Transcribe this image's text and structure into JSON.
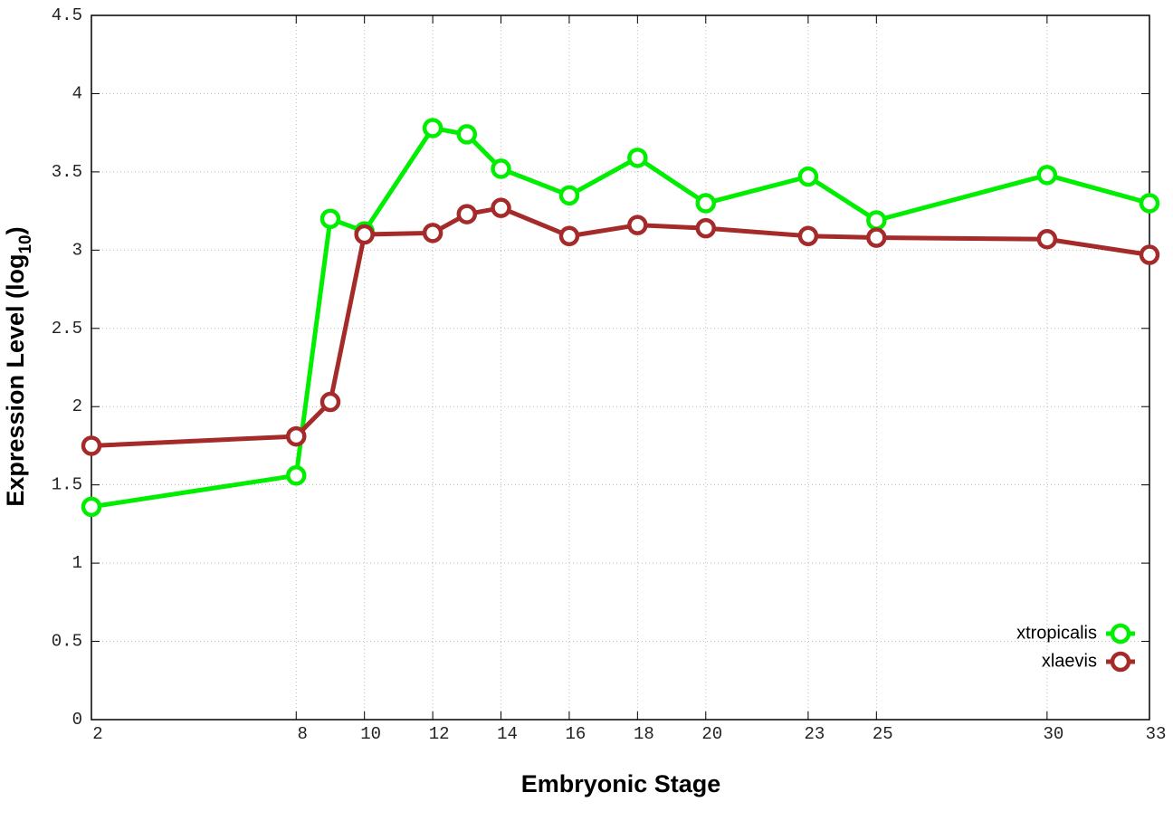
{
  "chart_data": {
    "type": "line",
    "xlabel": "Embryonic Stage",
    "ylabel": {
      "text": "Expression Level (log",
      "subscript": "10",
      "suffix": ")"
    },
    "x": [
      2,
      8,
      9,
      10,
      12,
      13,
      14,
      16,
      18,
      20,
      23,
      25,
      30,
      33
    ],
    "series": [
      {
        "name": "xtropicalis",
        "color": "#00ee00",
        "values": [
          1.36,
          1.56,
          3.2,
          3.12,
          3.78,
          3.74,
          3.52,
          3.35,
          3.59,
          3.3,
          3.47,
          3.19,
          3.48,
          3.3
        ]
      },
      {
        "name": "xlaevis",
        "color": "#a52a2a",
        "values": [
          1.75,
          1.81,
          2.03,
          3.1,
          3.11,
          3.23,
          3.27,
          3.09,
          3.16,
          3.14,
          3.09,
          3.08,
          3.07,
          2.97
        ]
      }
    ],
    "xlim": [
      2,
      33
    ],
    "xticks": [
      2,
      8,
      10,
      12,
      14,
      16,
      18,
      20,
      23,
      25,
      30,
      33
    ],
    "ylim": [
      0,
      4.5
    ],
    "yticks": [
      0,
      0.5,
      1,
      1.5,
      2,
      2.5,
      3,
      3.5,
      4,
      4.5
    ],
    "grid": true,
    "legend": "bottom-right"
  }
}
